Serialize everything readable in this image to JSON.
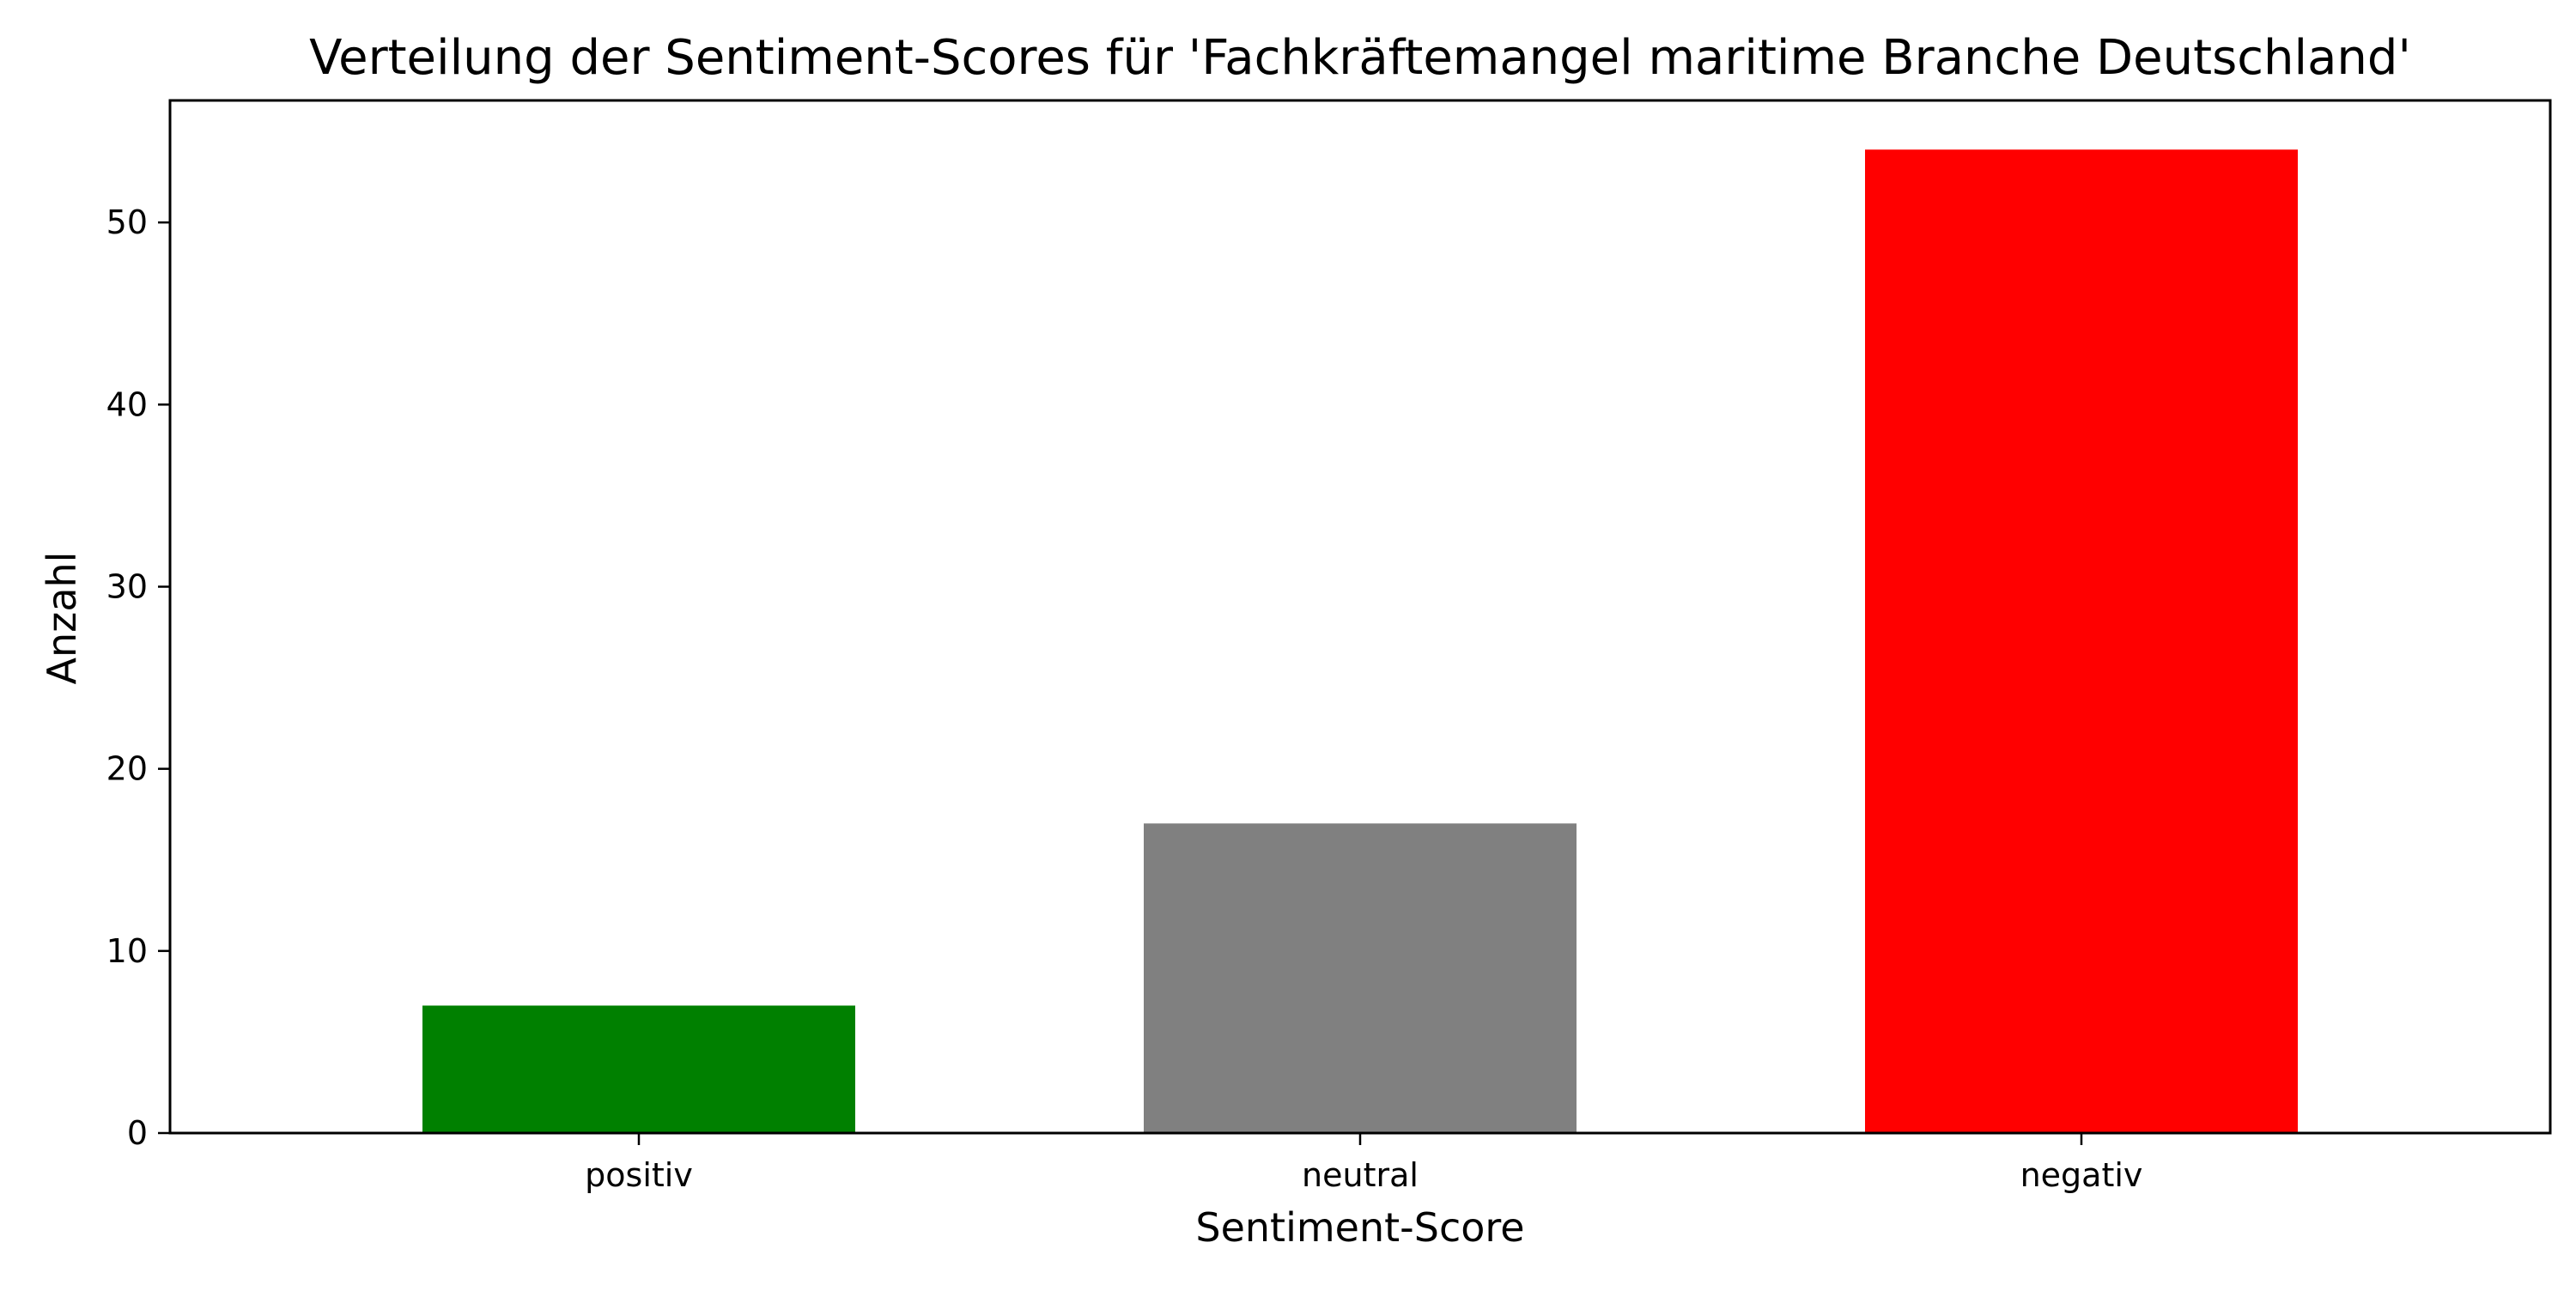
{
  "chart_data": {
    "type": "bar",
    "title": "Verteilung der Sentiment-Scores für 'Fachkräftemangel maritime Branche Deutschland'",
    "xlabel": "Sentiment-Score",
    "ylabel": "Anzahl",
    "categories": [
      "positiv",
      "neutral",
      "negativ"
    ],
    "values": [
      7,
      17,
      54
    ],
    "colors": [
      "#008000",
      "#808080",
      "#ff0000"
    ],
    "ylim": [
      0,
      56.7
    ],
    "yticks": [
      0,
      10,
      20,
      30,
      40,
      50
    ],
    "reference_line": {
      "y": 0,
      "style": "dashed"
    },
    "grid": false,
    "legend": "none"
  }
}
